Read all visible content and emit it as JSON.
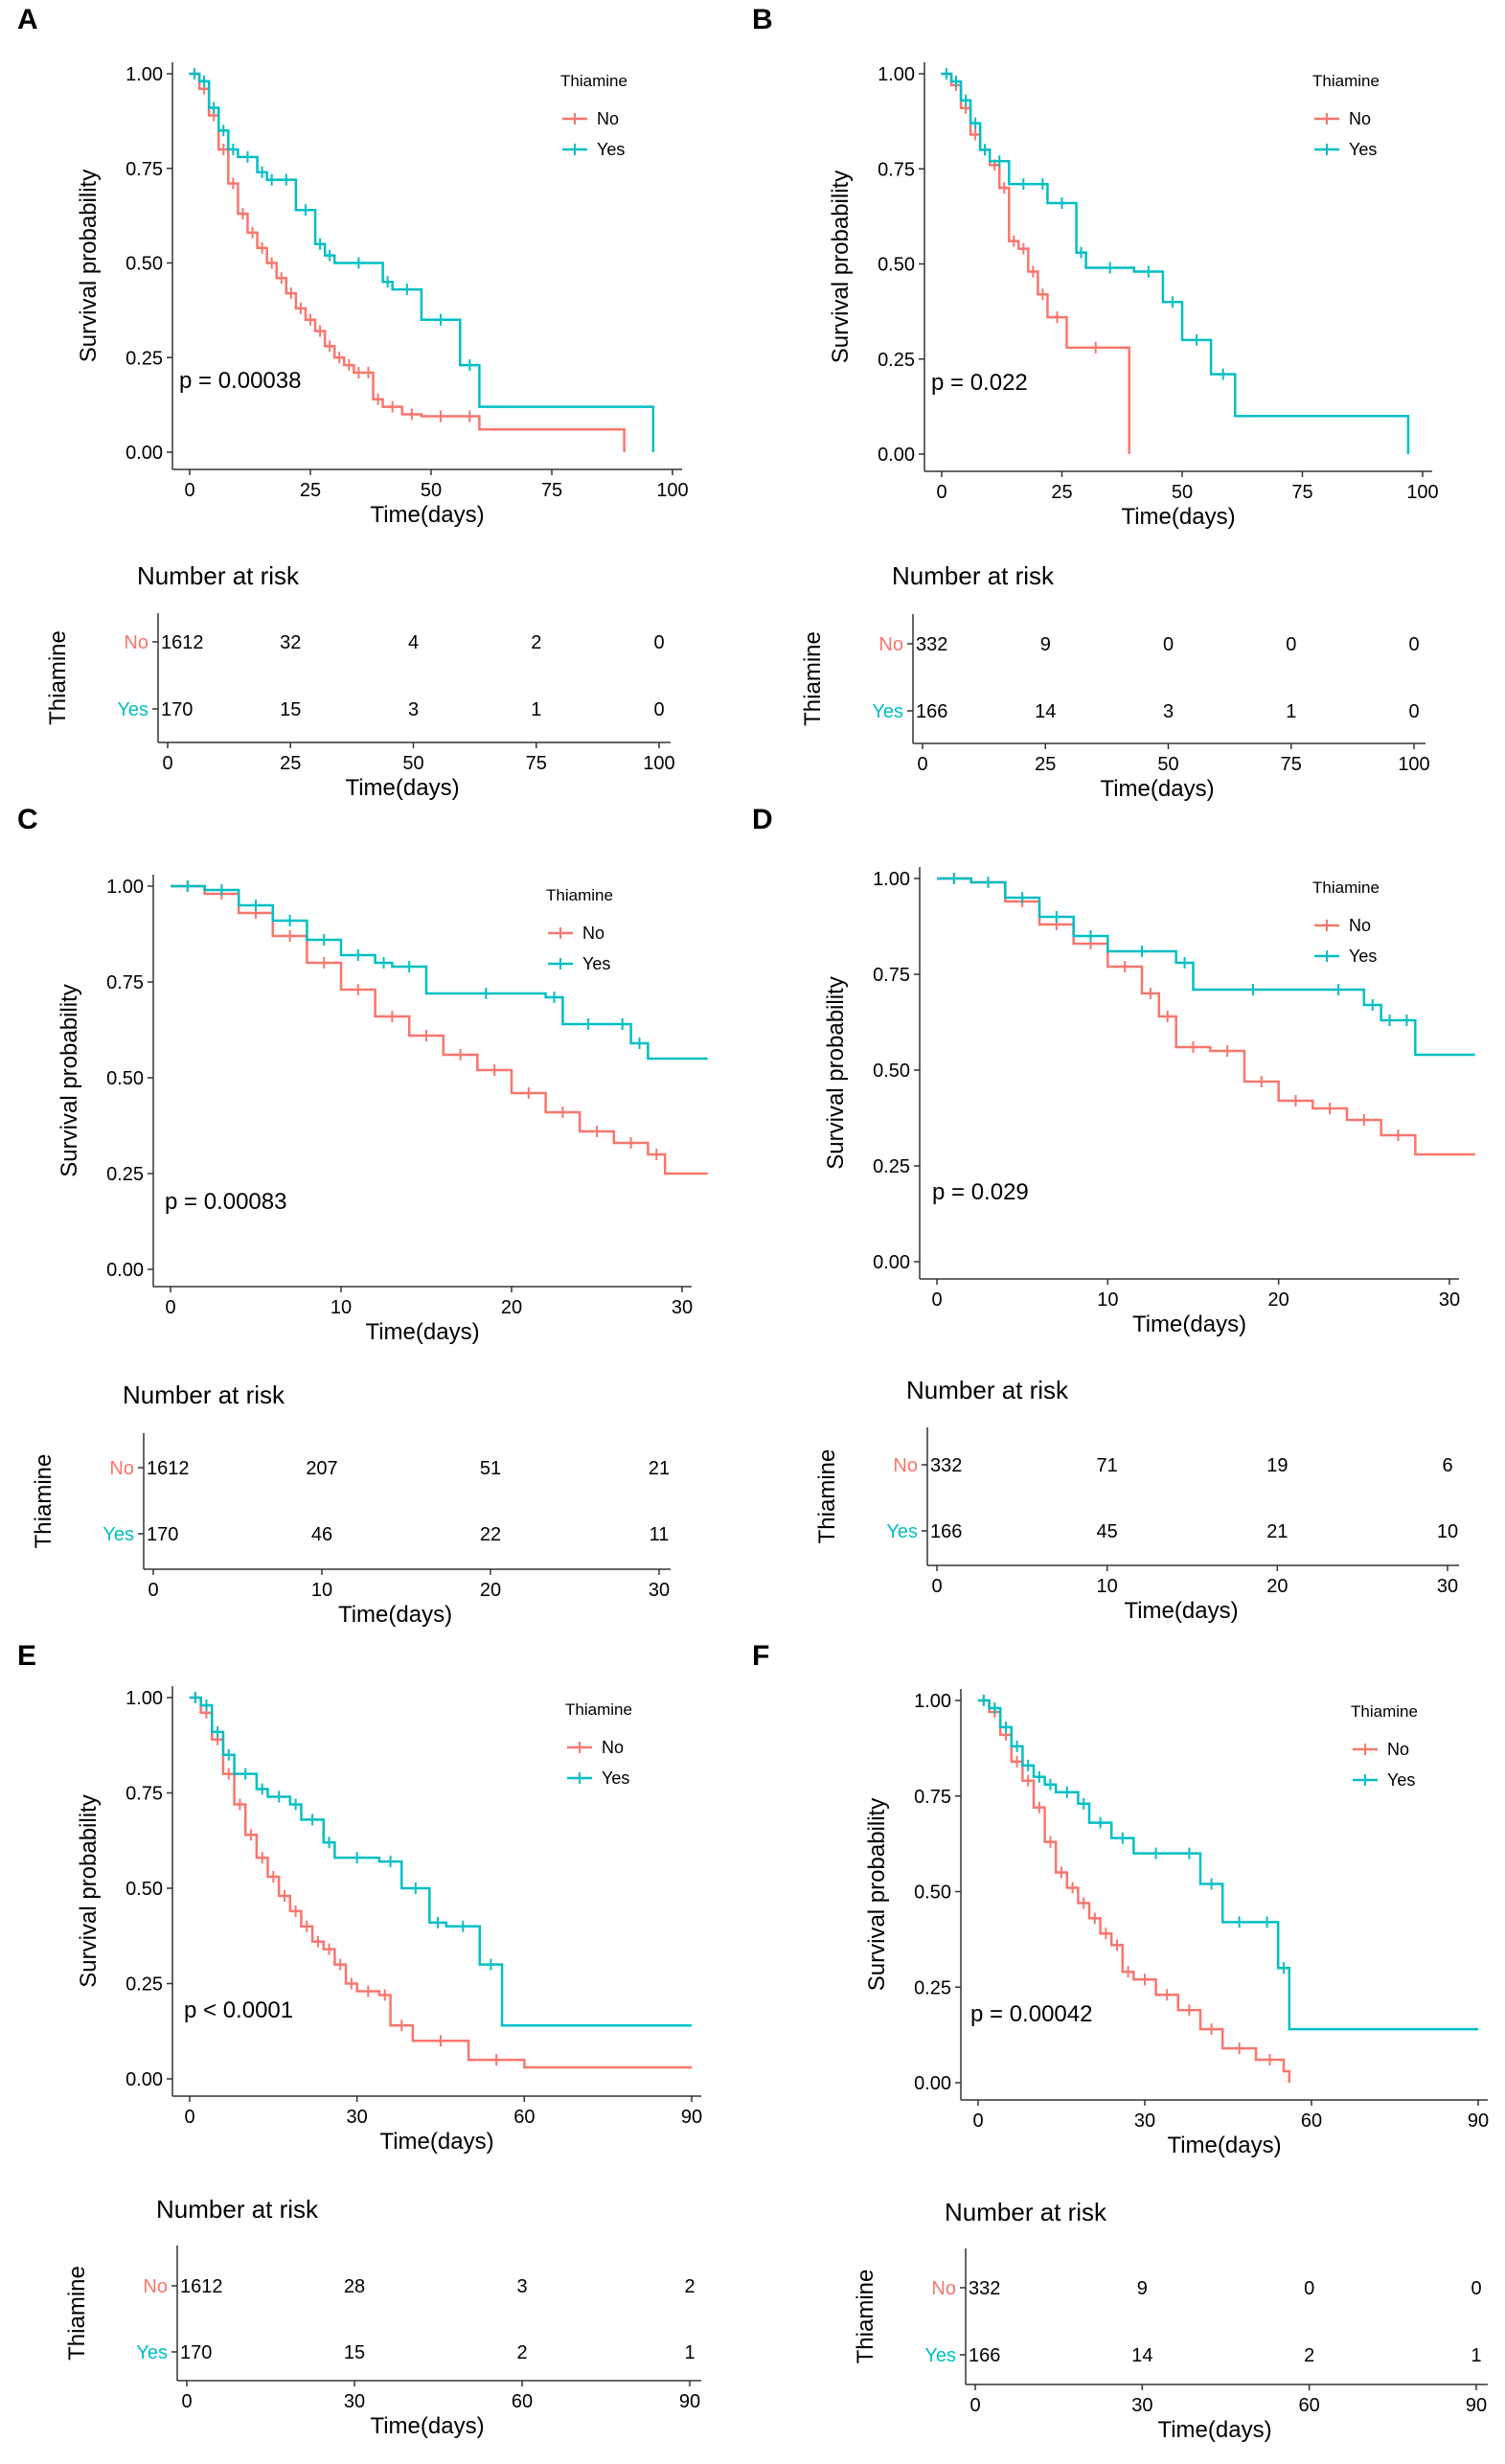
{
  "colors": {
    "no": "#F8766D",
    "yes": "#00BFC4",
    "axis": "#333333",
    "text": "#000000"
  },
  "common": {
    "xlabel": "Time(days)",
    "ylabel": "Survival probability",
    "risk_title": "Number at risk",
    "risk_ylabel": "Thiamine",
    "legend_title": "Thiamine",
    "group_no": "No",
    "group_yes": "Yes"
  },
  "chart_data": [
    {
      "panel": "A",
      "type": "line",
      "title": "",
      "xlabel": "Time(days)",
      "ylabel": "Survival probability",
      "xlim": [
        0,
        100
      ],
      "ylim": [
        0,
        1
      ],
      "xticks": [
        "0",
        "25",
        "50",
        "75",
        "100"
      ],
      "yticks": [
        "0.00",
        "0.25",
        "0.50",
        "0.75",
        "1.00"
      ],
      "pvalue": "p = 0.00038",
      "series": [
        {
          "name": "No",
          "x": [
            0,
            2,
            4,
            6,
            8,
            10,
            12,
            14,
            16,
            18,
            20,
            22,
            24,
            26,
            28,
            30,
            32,
            34,
            36,
            38,
            40,
            44,
            48,
            56,
            60,
            90
          ],
          "y": [
            1.0,
            0.96,
            0.89,
            0.8,
            0.71,
            0.63,
            0.58,
            0.54,
            0.5,
            0.46,
            0.42,
            0.38,
            0.35,
            0.32,
            0.28,
            0.25,
            0.23,
            0.21,
            0.21,
            0.14,
            0.12,
            0.1,
            0.095,
            0.095,
            0.06,
            0.0
          ]
        },
        {
          "name": "Yes",
          "x": [
            0,
            2,
            4,
            6,
            8,
            10,
            14,
            16,
            18,
            22,
            26,
            28,
            30,
            40,
            42,
            48,
            56,
            60,
            96
          ],
          "y": [
            1.0,
            0.98,
            0.91,
            0.85,
            0.8,
            0.78,
            0.74,
            0.72,
            0.72,
            0.64,
            0.55,
            0.52,
            0.5,
            0.45,
            0.43,
            0.35,
            0.23,
            0.12,
            0.0
          ]
        }
      ],
      "risk": {
        "times": [
          "0",
          "25",
          "50",
          "75",
          "100"
        ],
        "No": [
          "1612",
          "32",
          "4",
          "2",
          "0"
        ],
        "Yes": [
          "170",
          "15",
          "3",
          "1",
          "0"
        ]
      }
    },
    {
      "panel": "B",
      "type": "line",
      "title": "",
      "xlabel": "Time(days)",
      "ylabel": "Survival probability",
      "xlim": [
        0,
        100
      ],
      "ylim": [
        0,
        1
      ],
      "xticks": [
        "0",
        "25",
        "50",
        "75",
        "100"
      ],
      "yticks": [
        "0.00",
        "0.25",
        "0.50",
        "0.75",
        "1.00"
      ],
      "pvalue": "p = 0.022",
      "series": [
        {
          "name": "No",
          "x": [
            0,
            2,
            4,
            6,
            8,
            10,
            12,
            14,
            16,
            18,
            20,
            22,
            26,
            38,
            39
          ],
          "y": [
            1.0,
            0.97,
            0.91,
            0.84,
            0.8,
            0.76,
            0.7,
            0.56,
            0.54,
            0.48,
            0.42,
            0.36,
            0.28,
            0.28,
            0.0
          ]
        },
        {
          "name": "Yes",
          "x": [
            0,
            2,
            4,
            6,
            8,
            10,
            14,
            20,
            22,
            28,
            30,
            40,
            46,
            50,
            56,
            61,
            97
          ],
          "y": [
            1.0,
            0.98,
            0.93,
            0.87,
            0.8,
            0.77,
            0.71,
            0.71,
            0.66,
            0.53,
            0.49,
            0.48,
            0.4,
            0.3,
            0.21,
            0.1,
            0.0
          ]
        }
      ],
      "risk": {
        "times": [
          "0",
          "25",
          "50",
          "75",
          "100"
        ],
        "No": [
          "332",
          "9",
          "0",
          "0",
          "0"
        ],
        "Yes": [
          "166",
          "14",
          "3",
          "1",
          "0"
        ]
      }
    },
    {
      "panel": "C",
      "type": "line",
      "title": "",
      "xlabel": "Time(days)",
      "ylabel": "Survival probability",
      "xlim": [
        0,
        30
      ],
      "ylim": [
        0,
        1
      ],
      "xticks": [
        "0",
        "10",
        "20",
        "30"
      ],
      "yticks": [
        "0.00",
        "0.25",
        "0.50",
        "0.75",
        "1.00"
      ],
      "pvalue": "p = 0.00083",
      "series": [
        {
          "name": "No",
          "x": [
            0,
            2,
            4,
            6,
            8,
            10,
            12,
            14,
            16,
            18,
            20,
            22,
            24,
            26,
            28,
            29,
            31.5
          ],
          "y": [
            1.0,
            0.98,
            0.93,
            0.87,
            0.8,
            0.73,
            0.66,
            0.61,
            0.56,
            0.52,
            0.46,
            0.41,
            0.36,
            0.33,
            0.3,
            0.25,
            0.25
          ]
        },
        {
          "name": "Yes",
          "x": [
            0,
            2,
            4,
            6,
            8,
            10,
            12,
            13,
            15,
            22,
            23,
            26,
            27,
            28,
            31.5
          ],
          "y": [
            1.0,
            0.99,
            0.95,
            0.91,
            0.86,
            0.82,
            0.8,
            0.79,
            0.72,
            0.71,
            0.64,
            0.64,
            0.59,
            0.55,
            0.55
          ]
        }
      ],
      "risk": {
        "times": [
          "0",
          "10",
          "20",
          "30"
        ],
        "No": [
          "1612",
          "207",
          "51",
          "21"
        ],
        "Yes": [
          "170",
          "46",
          "22",
          "11"
        ]
      }
    },
    {
      "panel": "D",
      "type": "line",
      "title": "",
      "xlabel": "Time(days)",
      "ylabel": "Survival probability",
      "xlim": [
        0,
        30
      ],
      "ylim": [
        0,
        1
      ],
      "xticks": [
        "0",
        "10",
        "20",
        "30"
      ],
      "yticks": [
        "0.00",
        "0.25",
        "0.50",
        "0.75",
        "1.00"
      ],
      "pvalue": "p = 0.029",
      "series": [
        {
          "name": "No",
          "x": [
            0,
            2,
            4,
            6,
            8,
            10,
            12,
            13,
            14,
            16,
            18,
            20,
            22,
            24,
            26,
            28,
            31.5
          ],
          "y": [
            1.0,
            0.99,
            0.94,
            0.88,
            0.83,
            0.77,
            0.7,
            0.64,
            0.56,
            0.55,
            0.47,
            0.42,
            0.4,
            0.37,
            0.33,
            0.28,
            0.28
          ]
        },
        {
          "name": "Yes",
          "x": [
            0,
            2,
            4,
            6,
            8,
            10,
            14,
            15,
            22,
            25,
            26,
            27,
            28,
            31.5
          ],
          "y": [
            1.0,
            0.99,
            0.95,
            0.9,
            0.85,
            0.81,
            0.78,
            0.71,
            0.71,
            0.67,
            0.63,
            0.63,
            0.54,
            0.54
          ]
        }
      ],
      "risk": {
        "times": [
          "0",
          "10",
          "20",
          "30"
        ],
        "No": [
          "332",
          "71",
          "19",
          "6"
        ],
        "Yes": [
          "166",
          "45",
          "21",
          "10"
        ]
      }
    },
    {
      "panel": "E",
      "type": "line",
      "title": "",
      "xlabel": "Time(days)",
      "ylabel": "Survival probability",
      "xlim": [
        0,
        90
      ],
      "ylim": [
        0,
        1
      ],
      "xticks": [
        "0",
        "30",
        "60",
        "90"
      ],
      "yticks": [
        "0.00",
        "0.25",
        "0.50",
        "0.75",
        "1.00"
      ],
      "pvalue": "p < 0.0001",
      "series": [
        {
          "name": "No",
          "x": [
            0,
            2,
            4,
            6,
            8,
            10,
            12,
            14,
            16,
            18,
            20,
            22,
            24,
            26,
            28,
            30,
            34,
            36,
            40,
            50,
            60,
            90
          ],
          "y": [
            1.0,
            0.96,
            0.89,
            0.8,
            0.72,
            0.64,
            0.58,
            0.53,
            0.48,
            0.44,
            0.4,
            0.36,
            0.34,
            0.3,
            0.25,
            0.23,
            0.22,
            0.14,
            0.1,
            0.05,
            0.03,
            0.03
          ]
        },
        {
          "name": "Yes",
          "x": [
            0,
            2,
            4,
            6,
            8,
            12,
            14,
            18,
            20,
            24,
            26,
            34,
            38,
            43,
            46,
            52,
            56,
            90
          ],
          "y": [
            1.0,
            0.98,
            0.91,
            0.85,
            0.8,
            0.76,
            0.74,
            0.72,
            0.68,
            0.62,
            0.58,
            0.57,
            0.5,
            0.41,
            0.4,
            0.3,
            0.14,
            0.14
          ]
        }
      ],
      "risk": {
        "times": [
          "0",
          "30",
          "60",
          "90"
        ],
        "No": [
          "1612",
          "28",
          "3",
          "2"
        ],
        "Yes": [
          "170",
          "15",
          "2",
          "1"
        ]
      }
    },
    {
      "panel": "F",
      "type": "line",
      "title": "",
      "xlabel": "Time(days)",
      "ylabel": "Survival probability",
      "xlim": [
        0,
        90
      ],
      "ylim": [
        0,
        1
      ],
      "xticks": [
        "0",
        "30",
        "60",
        "90"
      ],
      "yticks": [
        "0.00",
        "0.25",
        "0.50",
        "0.75",
        "1.00"
      ],
      "pvalue": "p = 0.00042",
      "series": [
        {
          "name": "No",
          "x": [
            0,
            2,
            4,
            6,
            8,
            10,
            12,
            14,
            16,
            18,
            20,
            22,
            24,
            26,
            28,
            32,
            36,
            40,
            44,
            50,
            55,
            56
          ],
          "y": [
            1.0,
            0.97,
            0.91,
            0.84,
            0.79,
            0.72,
            0.63,
            0.55,
            0.51,
            0.47,
            0.43,
            0.39,
            0.36,
            0.29,
            0.27,
            0.23,
            0.19,
            0.14,
            0.09,
            0.06,
            0.03,
            0.0
          ]
        },
        {
          "name": "Yes",
          "x": [
            0,
            2,
            4,
            6,
            8,
            10,
            12,
            14,
            18,
            20,
            24,
            28,
            36,
            40,
            44,
            50,
            54,
            56,
            90
          ],
          "y": [
            1.0,
            0.98,
            0.93,
            0.88,
            0.83,
            0.8,
            0.78,
            0.76,
            0.73,
            0.68,
            0.64,
            0.6,
            0.6,
            0.52,
            0.42,
            0.42,
            0.3,
            0.14,
            0.14
          ]
        }
      ],
      "risk": {
        "times": [
          "0",
          "30",
          "60",
          "90"
        ],
        "No": [
          "332",
          "9",
          "0",
          "0"
        ],
        "Yes": [
          "166",
          "14",
          "2",
          "1"
        ]
      }
    }
  ]
}
